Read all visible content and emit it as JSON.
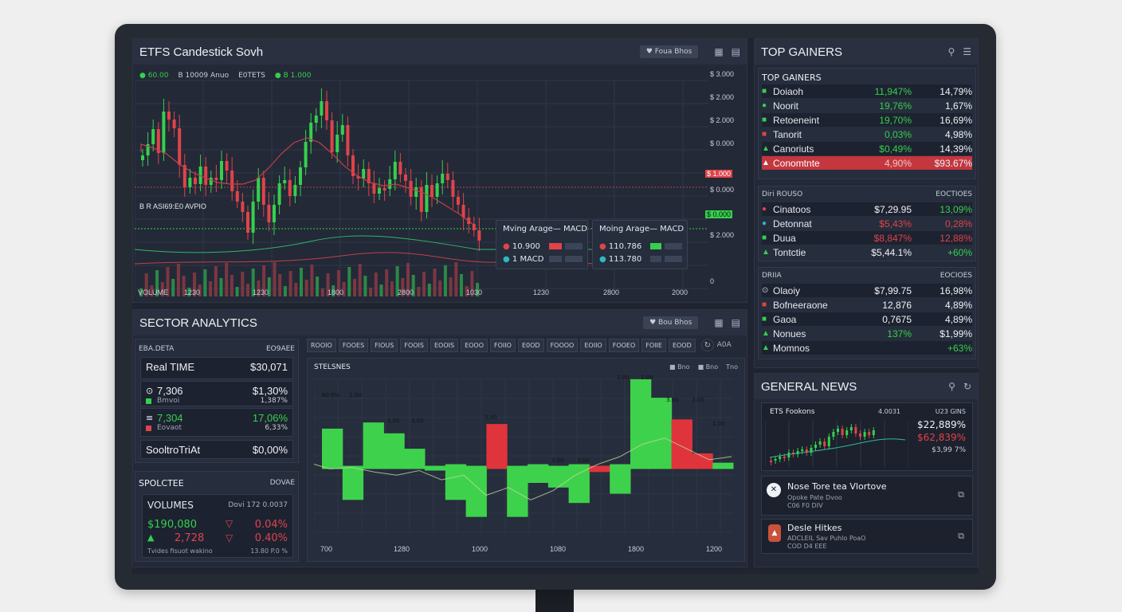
{
  "candle_panel": {
    "title": "ETFS Candestick Sovh",
    "btn": "♥ Foua Bhos",
    "legend": [
      {
        "dot": "#e0434a",
        "text": "● 60.00",
        "color": "#35d04c"
      },
      {
        "dot": "",
        "text": "B 10009 Anuo",
        "color": "#c8ced8"
      },
      {
        "dot": "",
        "text": "E0TETS",
        "color": "#c8ced8"
      },
      {
        "dot": "#35d04c",
        "text": "● B 1.000",
        "color": "#35d04c"
      }
    ],
    "price_ticks": [
      "$ 3.000",
      "$ 2.000",
      "$ 2.000",
      "$ 0.000",
      "$ 1.000",
      "$ 0.000",
      "$ 1.000",
      "$ 1.000",
      "$ 1.000",
      "$ 1.000",
      "$ 2.000",
      "0"
    ],
    "marker_red": "$ 1.000",
    "marker_green": "$ 0.000",
    "annotation": "B R ASI69:E0 AVPIO",
    "x_ticks": [
      "VOLUME",
      "1230",
      "1230",
      "1800",
      "2800",
      "1030",
      "1230",
      "2800",
      "2000"
    ],
    "card1": {
      "title": "Mving Arage— MACD",
      "r1": "10.900",
      "r2": "1 MACD"
    },
    "card2": {
      "title": "Moing Arage— MACD",
      "r1": "110.786",
      "r2": "113.780"
    }
  },
  "sector_panel": {
    "title": "SECTOR ANALYTICS",
    "btn": "♥ Bou Bhos",
    "breakdown": {
      "head_left": "EBA.DETA",
      "head_right": "EO9AEE",
      "rows": [
        {
          "icon": "",
          "name": "Real TIME",
          "sub": "",
          "value": "$30,071",
          "subval": "",
          "color": "#eef1f6"
        },
        {
          "icon": "⊙",
          "name": "7,306",
          "sub": "Bmvoi",
          "value": "$1,30%",
          "subval": "1,387%",
          "color": "#eef1f6"
        },
        {
          "icon": "≡",
          "name": "7,304",
          "sub": "Eovaot",
          "value": "17,06%",
          "subval": "6,33%",
          "color": "#35d04c"
        },
        {
          "icon": "",
          "name": "SooltroTriAt",
          "sub": "",
          "value": "$0,00%",
          "subval": "",
          "color": "#eef1f6"
        }
      ]
    },
    "volumes": {
      "head_left": "SPOLCTEE",
      "head_right": "DOVAE",
      "label": "VOLUMES",
      "label_right": "Dovi 172 0.0037",
      "v1_left": "$190,080",
      "v1_right": "0.04%",
      "v2_left": "2,728",
      "v2_right": "0.40%",
      "foot_left": "Tvides fisuot wakino",
      "foot_right": "13.80 P.0 %"
    },
    "tabs": [
      "ROOIO",
      "FOOES",
      "FIOUS",
      "FOOIS",
      "EOOIS",
      "EOOO",
      "FOIIO",
      "E0OD",
      "FOOOO",
      "EOIIO",
      "FOOEO",
      "FOIIE",
      "EOOD"
    ],
    "tab_tail": "A0A",
    "chart_title": "STELSNES",
    "chart_legend": [
      "■ Bno",
      "■ Bno",
      "Tno"
    ],
    "x_ticks": [
      "700",
      "1280",
      "1000",
      "1080",
      "1800",
      "1200"
    ],
    "chart_data": {
      "type": "bar",
      "categories": [
        "1",
        "2",
        "3",
        "4",
        "5",
        "6",
        "7",
        "8",
        "9",
        "10",
        "11",
        "12",
        "13",
        "14",
        "15",
        "16",
        "17",
        "18",
        "19",
        "20"
      ],
      "values": [
        0.25,
        -0.18,
        0.29,
        0.23,
        0.12,
        0.02,
        -0.18,
        -0.29,
        0.28,
        -0.29,
        -0.07,
        -0.1,
        -0.2,
        0.0,
        -0.14,
        0.58,
        0.45,
        0.32,
        0.09,
        0.04
      ],
      "colors": [
        "green",
        "green",
        "green",
        "green",
        "green",
        "green",
        "green",
        "green",
        "red",
        "green",
        "green",
        "green",
        "green",
        "red",
        "green",
        "green",
        "green",
        "red",
        "red",
        "green"
      ],
      "ylim": [
        -0.4,
        0.6
      ],
      "labels": [
        "60.0%",
        "1.00",
        "1.00",
        "3.00",
        "3.00",
        "1.00",
        "1.00",
        "3.00",
        "3.00",
        "1.00",
        "1.00",
        "3.00"
      ]
    }
  },
  "gainers_panel": {
    "title": "TOP GAINERS",
    "section1_title": "TOP GAINERS",
    "section1_rows": [
      {
        "icon": "■",
        "icon_color": "#35d04c",
        "name": "Doiaoh",
        "v1": "11,947%",
        "v1_color": "#35d04c",
        "v2": "14,79%"
      },
      {
        "icon": "●",
        "icon_color": "#35d04c",
        "name": "Noorit",
        "v1": "19,76%",
        "v1_color": "#35d04c",
        "v2": "1,67%"
      },
      {
        "icon": "■",
        "icon_color": "#35d04c",
        "name": "Retoeneint",
        "v1": "19,70%",
        "v1_color": "#35d04c",
        "v2": "16,69%"
      },
      {
        "icon": "■",
        "icon_color": "#e0434a",
        "name": "Tanorit",
        "v1": "0,03%",
        "v1_color": "#35d04c",
        "v2": "4,98%"
      },
      {
        "icon": "▲",
        "icon_color": "#35d04c",
        "name": "Canoriuts",
        "v1": "$0,49%",
        "v1_color": "#35d04c",
        "v2": "14,39%"
      },
      {
        "icon": "▲",
        "icon_color": "#ffffff",
        "name": "Conomtnte",
        "v1": "4,90%",
        "v1_color": "#f3c2c4",
        "v2": "$93.67%",
        "highlight": true
      }
    ],
    "section2_left": "Diri ROUSO",
    "section2_right": "EOCTIOES",
    "section2_rows": [
      {
        "icon": "●",
        "icon_color": "#e0434a",
        "name": "Cinatoos",
        "v1": "$7,29.95",
        "v1_color": "#eef1f6",
        "v2": "13,09%",
        "v2_color": "#35d04c"
      },
      {
        "icon": "●",
        "icon_color": "#2fb8c0",
        "name": "Detonnat",
        "v1": "$5,43%",
        "v1_color": "#e0434a",
        "v2": "0,28%",
        "v2_color": "#e0434a"
      },
      {
        "icon": "■",
        "icon_color": "#35d04c",
        "name": "Duua",
        "v1": "$8,847%",
        "v1_color": "#e0434a",
        "v2": "12,88%",
        "v2_color": "#e0434a"
      },
      {
        "icon": "▲",
        "icon_color": "#35d04c",
        "name": "Tontctie",
        "v1": "$5,44.1%",
        "v1_color": "#eef1f6",
        "v2": "+60%",
        "v2_color": "#35d04c"
      }
    ],
    "section3_left": "DRIIA",
    "section3_right": "EOCIOES",
    "section3_rows": [
      {
        "icon": "⊙",
        "icon_color": "#c8ced8",
        "name": "Olaoiy",
        "v1": "$7,99.75",
        "v1_color": "#eef1f6",
        "v2": "16,98%",
        "v2_color": "#eef1f6"
      },
      {
        "icon": "■",
        "icon_color": "#e0434a",
        "name": "Bofneeraone",
        "v1": "12,876",
        "v1_color": "#eef1f6",
        "v2": "4,89%",
        "v2_color": "#eef1f6"
      },
      {
        "icon": "■",
        "icon_color": "#35d04c",
        "name": "Gaoa",
        "v1": "0,7675",
        "v1_color": "#eef1f6",
        "v2": "4,89%",
        "v2_color": "#eef1f6"
      },
      {
        "icon": "▲",
        "icon_color": "#35d04c",
        "name": "Nonues",
        "v1": "137%",
        "v1_color": "#35d04c",
        "v2": "$1,99%",
        "v2_color": "#eef1f6"
      },
      {
        "icon": "▲",
        "icon_color": "#35d04c",
        "name": "Momnos",
        "v1": "",
        "v1_color": "#eef1f6",
        "v2": "+63%",
        "v2_color": "#35d04c"
      }
    ]
  },
  "news_panel": {
    "title": "GENERAL NEWS",
    "mini_title": "ETS Fookons",
    "mini_mid": "4.0031",
    "mini_right": "U23 GINS",
    "mini_v1": "$22,889%",
    "mini_v2": "$62,839%",
    "mini_v3": "$3,99 7%",
    "items": [
      {
        "icon": "✕",
        "title": "Nose Tore tea Vlortove",
        "sub1": "Opoke Pate Dvoo",
        "sub2": "C06 F0 DIV"
      },
      {
        "icon": "▲",
        "title": "Desle Hitkes",
        "sub1": "ADCLEIL Sav Puhlo PoaO",
        "sub2": "COD D4 EEE"
      }
    ]
  },
  "icons": {
    "pin": "pin-icon",
    "menu": "menu-icon",
    "bar": "bar-chart-icon",
    "refresh": "refresh-icon"
  }
}
